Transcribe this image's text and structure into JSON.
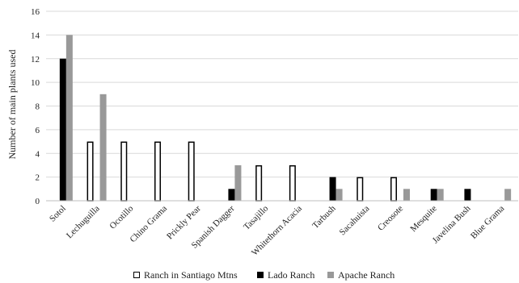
{
  "chart_data": {
    "type": "bar",
    "title": "",
    "xlabel": "",
    "ylabel": "Number of main plants used",
    "ylim": [
      0,
      16
    ],
    "yticks": [
      0,
      2,
      4,
      6,
      8,
      10,
      12,
      14,
      16
    ],
    "grid": "horizontal",
    "legend_position": "bottom",
    "categories": [
      "Sotol",
      "Lechuguilla",
      "Ocotillo",
      "Chino Grama",
      "Prickly Pear",
      "Spanish Dagger",
      "Tasajillo",
      "Whitethorn Acacia",
      "Tarbush",
      "Sacahuista",
      "Creosote",
      "Mesquite",
      "Javelina Bush",
      "Blue Grama"
    ],
    "series": [
      {
        "name": "Ranch in Santiago Mtns",
        "color": "#ffffff",
        "stroke": "#000000",
        "values": [
          0,
          5,
          5,
          5,
          5,
          0,
          3,
          3,
          0,
          2,
          2,
          0,
          0,
          0
        ]
      },
      {
        "name": "Lado Ranch",
        "color": "#000000",
        "stroke": "#000000",
        "values": [
          12,
          0,
          0,
          0,
          0,
          1,
          0,
          0,
          2,
          0,
          0,
          1,
          1,
          0
        ]
      },
      {
        "name": "Apache Ranch",
        "color": "#999999",
        "stroke": "#999999",
        "values": [
          14,
          9,
          0,
          0,
          0,
          3,
          0,
          0,
          1,
          0,
          1,
          1,
          0,
          1
        ]
      }
    ]
  }
}
